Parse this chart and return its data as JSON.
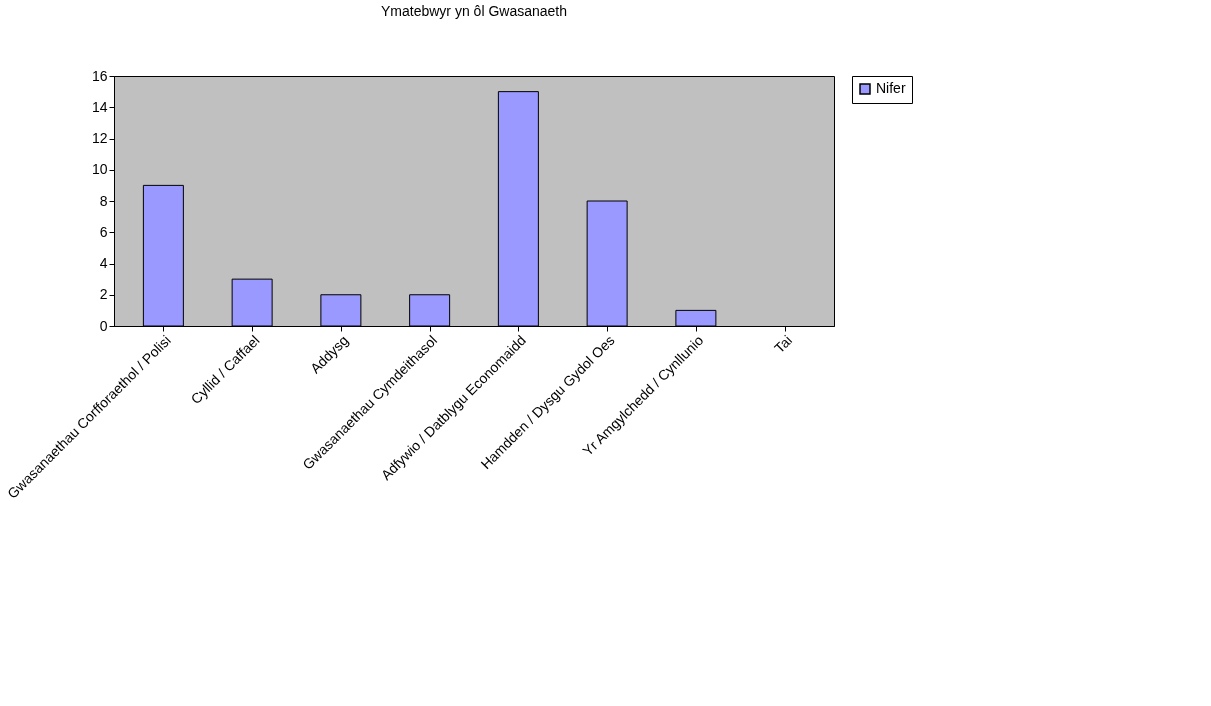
{
  "chart_data": {
    "type": "bar",
    "title": "Ymatebwyr yn ôl Gwasanaeth",
    "categories": [
      "Gwasanaethau Corfforaethol / Polisi",
      "Cyllid / Caffael",
      "Addysg",
      "Gwasanaethau Cymdeithasol",
      "Adfywio / Datblygu Economaidd",
      "Hamdden / Dysgu Gydol Oes",
      "Yr Amgylchedd / Cynllunio",
      "Tai"
    ],
    "series": [
      {
        "name": "Nifer",
        "color": "#9999ff",
        "values": [
          9,
          3,
          2,
          2,
          15,
          8,
          1,
          0
        ]
      }
    ],
    "ylim": [
      0,
      16
    ],
    "yticks": [
      0,
      2,
      4,
      6,
      8,
      10,
      12,
      14,
      16
    ],
    "grid": false,
    "legend": "right"
  }
}
